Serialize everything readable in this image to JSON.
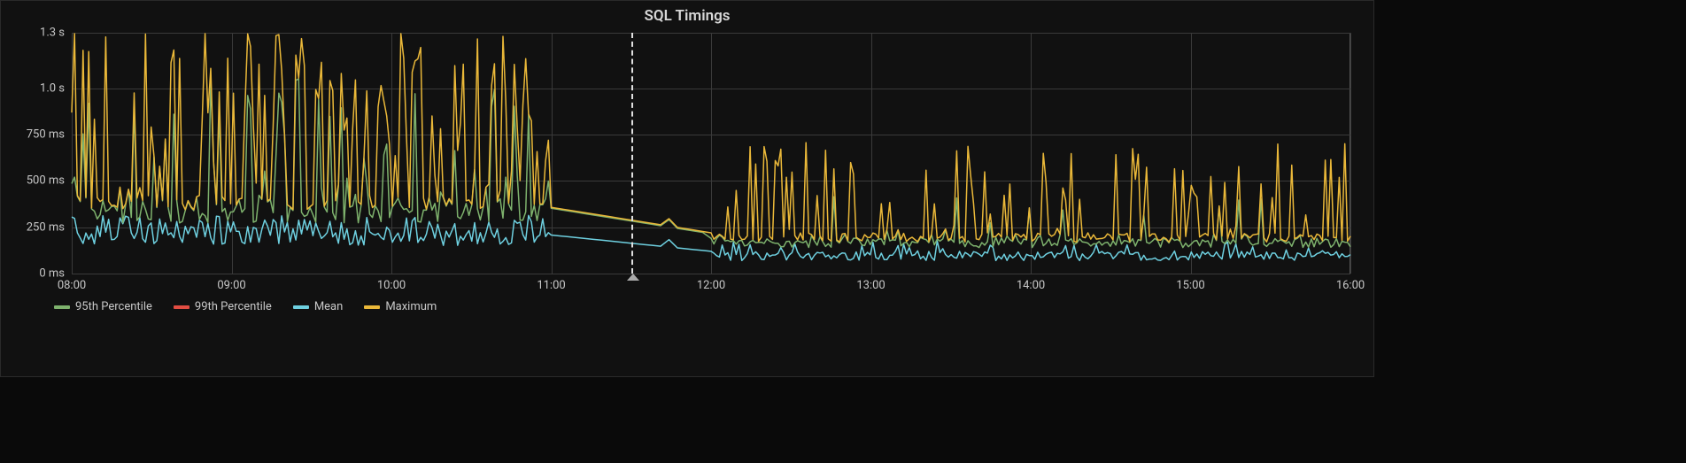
{
  "title": "SQL Timings",
  "chart": {
    "type": "line",
    "background_color": "#111111",
    "grid_color": "#3a3a3a",
    "text_color": "#c8c8c8",
    "line_width": 1.5,
    "x": {
      "min_h": 8.0,
      "max_h": 16.0,
      "ticks": [
        8,
        9,
        10,
        11,
        12,
        13,
        14,
        15,
        16
      ],
      "labels": [
        "08:00",
        "09:00",
        "10:00",
        "11:00",
        "12:00",
        "13:00",
        "14:00",
        "15:00",
        "16:00"
      ]
    },
    "y": {
      "min_ms": 0,
      "max_ms": 1300,
      "ticks_ms": [
        0,
        250,
        500,
        750,
        1000,
        1300
      ],
      "labels": [
        "0 ms",
        "250 ms",
        "500 ms",
        "750 ms",
        "1.0 s",
        "1.3 s"
      ]
    },
    "marker_x_h": 11.5,
    "series": [
      {
        "id": "p95",
        "label": "95th Percentile",
        "color": "#7eb26d"
      },
      {
        "id": "p99",
        "label": "99th Percentile",
        "color": "#e24d42"
      },
      {
        "id": "mean",
        "label": "Mean",
        "color": "#6ed0e0"
      },
      {
        "id": "max",
        "label": "Maximum",
        "color": "#eab839"
      }
    ],
    "gen": {
      "n_first": 170,
      "n_gap": 20,
      "n_second": 230,
      "max": {
        "pre_base": 350,
        "pre_amp": 900,
        "post_base": 180,
        "post_amp": 480,
        "post_spike_p": 0.1
      },
      "p95": {
        "pre_base": 280,
        "pre_amp": 720,
        "post_base": 150,
        "post_amp": 300,
        "post_spike_p": 0.08
      },
      "mean": {
        "pre_base": 160,
        "pre_amp": 140,
        "post_base": 80,
        "post_amp": 90,
        "post_spike_p": 0.05
      }
    }
  }
}
